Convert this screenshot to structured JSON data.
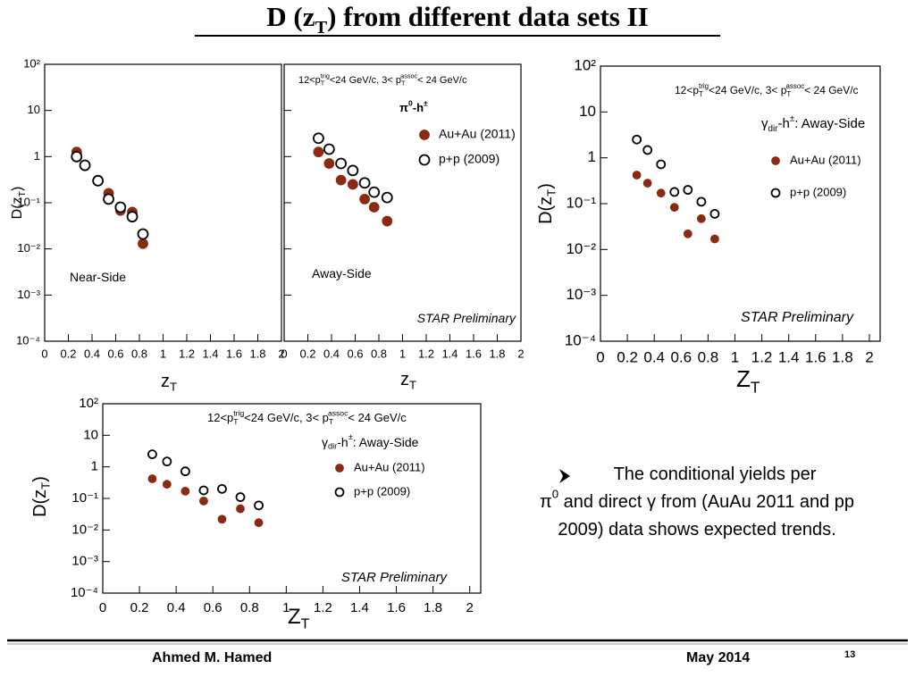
{
  "title": [
    "D (z",
    "T",
    ") from different data sets II"
  ],
  "chart_data": [
    {
      "type": "scatter",
      "ylog": true,
      "xlim": [
        0,
        2
      ],
      "ylim": [
        0.0001,
        100
      ],
      "xticks": [
        0,
        0.2,
        0.4,
        0.6,
        0.8,
        1,
        1.2,
        1.4,
        1.6,
        1.8,
        2
      ],
      "yticks": [
        {
          "value": 0.0001,
          "label": "10⁻⁴"
        },
        {
          "value": 0.001,
          "label": "10⁻³"
        },
        {
          "value": 0.01,
          "label": "10⁻²"
        },
        {
          "value": 0.1,
          "label": "10⁻¹"
        },
        1,
        10,
        {
          "value": 100,
          "label": "10²"
        }
      ],
      "xlabel": [
        "z",
        "T"
      ],
      "ylabel": [
        "D(z",
        "T",
        ")"
      ],
      "annotations": [
        [
          "Near-Side"
        ]
      ],
      "series": [
        {
          "color": "#8b2a12",
          "open": false,
          "x": [
            0.27,
            0.34,
            0.45,
            0.54,
            0.64,
            0.74,
            0.83
          ],
          "values": [
            1.26,
            0.63,
            0.31,
            0.16,
            0.068,
            0.063,
            0.013
          ]
        },
        {
          "color": "#000000",
          "open": true,
          "x": [
            0.27,
            0.34,
            0.45,
            0.54,
            0.64,
            0.74,
            0.83
          ],
          "values": [
            1.0,
            0.65,
            0.3,
            0.12,
            0.08,
            0.05,
            0.021
          ]
        }
      ]
    },
    {
      "type": "scatter",
      "ylog": true,
      "xlim": [
        0,
        2
      ],
      "ylim": [
        0.0001,
        100
      ],
      "xticks": [
        0,
        0.2,
        0.4,
        0.6,
        0.8,
        1,
        1.2,
        1.4,
        1.6,
        1.8,
        2
      ],
      "yticks": [
        0.0001,
        0.001,
        0.01,
        0.1,
        1,
        10,
        100
      ],
      "xlabel": [
        "z",
        "T"
      ],
      "annotations": [
        [
          "12<p",
          "T",
          "trig",
          "<24 GeV/c, 3< p",
          "T",
          "assoc",
          "< 24 GeV/c"
        ],
        [
          "π",
          "0",
          "-h",
          "±"
        ],
        [
          "Away-Side"
        ],
        [
          "STAR Preliminary"
        ]
      ],
      "legend": "upper right",
      "series": [
        {
          "name": "Au+Au (2011)",
          "color": "#8b2a12",
          "open": false,
          "x": [
            0.29,
            0.38,
            0.48,
            0.58,
            0.68,
            0.76,
            0.87
          ],
          "values": [
            1.26,
            0.71,
            0.31,
            0.25,
            0.12,
            0.08,
            0.04
          ]
        },
        {
          "name": "p+p (2009)",
          "color": "#000000",
          "open": true,
          "x": [
            0.29,
            0.38,
            0.48,
            0.58,
            0.68,
            0.76,
            0.87
          ],
          "values": [
            2.5,
            1.45,
            0.71,
            0.5,
            0.27,
            0.17,
            0.13
          ]
        }
      ]
    },
    {
      "type": "scatter",
      "ylog": true,
      "xlim": [
        0,
        2.08
      ],
      "ylim": [
        0.0001,
        100
      ],
      "xticks": [
        0,
        0.2,
        0.4,
        0.6,
        0.8,
        1,
        1.2,
        1.4,
        1.6,
        1.8,
        2
      ],
      "yticks": [
        {
          "value": 0.0001,
          "label": "10⁻⁴"
        },
        {
          "value": 0.001,
          "label": "10⁻³"
        },
        {
          "value": 0.01,
          "label": "10⁻²"
        },
        {
          "value": 0.1,
          "label": "10⁻¹"
        },
        1,
        10,
        {
          "value": 100,
          "label": "10²"
        }
      ],
      "xlabel": [
        "Z",
        "T"
      ],
      "ylabel": [
        "D(z",
        "T",
        ")"
      ],
      "annotations": [
        [
          "12<p",
          "T",
          "trig",
          "<24 GeV/c, 3< p",
          "T",
          "assoc",
          "< 24 GeV/c"
        ],
        [
          "γ",
          "dir",
          "-h",
          "±",
          ": Away-Side"
        ],
        [
          "STAR Preliminary"
        ]
      ],
      "legend": "upper right",
      "series": [
        {
          "name": "Au+Au (2011)",
          "color": "#8b2a12",
          "open": false,
          "x": [
            0.27,
            0.35,
            0.45,
            0.55,
            0.65,
            0.75,
            0.85
          ],
          "values": [
            0.42,
            0.28,
            0.17,
            0.083,
            0.022,
            0.047,
            0.017
          ]
        },
        {
          "name": "p+p (2009)",
          "color": "#000000",
          "open": true,
          "x": [
            0.27,
            0.35,
            0.45,
            0.55,
            0.65,
            0.75,
            0.85
          ],
          "values": [
            2.5,
            1.48,
            0.72,
            0.18,
            0.2,
            0.11,
            0.06
          ]
        }
      ]
    },
    {
      "type": "scatter",
      "ylog": true,
      "xlim": [
        0,
        2.06
      ],
      "ylim": [
        0.0001,
        100
      ],
      "xticks": [
        0,
        0.2,
        0.4,
        0.6,
        0.8,
        1,
        1.2,
        1.4,
        1.6,
        1.8,
        2
      ],
      "yticks": [
        {
          "value": 0.0001,
          "label": "10⁻⁴"
        },
        {
          "value": 0.001,
          "label": "10⁻³"
        },
        {
          "value": 0.01,
          "label": "10⁻²"
        },
        {
          "value": 0.1,
          "label": "10⁻¹"
        },
        1,
        10,
        {
          "value": 100,
          "label": "10²"
        }
      ],
      "xlabel": [
        "Z",
        "T"
      ],
      "ylabel": [
        "D(z",
        "T",
        ")"
      ],
      "annotations": [
        [
          "12<p",
          "T",
          "trig",
          "<24 GeV/c, 3< p",
          "T",
          "assoc",
          "< 24 GeV/c"
        ],
        [
          "γ",
          "dir",
          "-h",
          "±",
          ": Away-Side"
        ],
        [
          "STAR Preliminary"
        ]
      ],
      "legend": "upper right",
      "series": [
        {
          "name": "Au+Au (2011)",
          "color": "#8b2a12",
          "open": false,
          "x": [
            0.27,
            0.35,
            0.45,
            0.55,
            0.65,
            0.75,
            0.85
          ],
          "values": [
            0.42,
            0.28,
            0.17,
            0.083,
            0.022,
            0.047,
            0.017
          ]
        },
        {
          "name": "p+p (2009)",
          "color": "#000000",
          "open": true,
          "x": [
            0.27,
            0.35,
            0.45,
            0.55,
            0.65,
            0.75,
            0.85
          ],
          "values": [
            2.5,
            1.48,
            0.72,
            0.18,
            0.2,
            0.11,
            0.06
          ]
        }
      ]
    }
  ],
  "bullet": {
    "lines": [
      [
        "The conditional yields per"
      ],
      [
        "π",
        "0",
        " and direct ",
        "γ",
        " from (AuAu 2011 and pp"
      ],
      [
        "2009) data shows expected trends."
      ]
    ]
  },
  "footer": {
    "author": "Ahmed M. Hamed",
    "date": "May 2014",
    "page": "13"
  }
}
